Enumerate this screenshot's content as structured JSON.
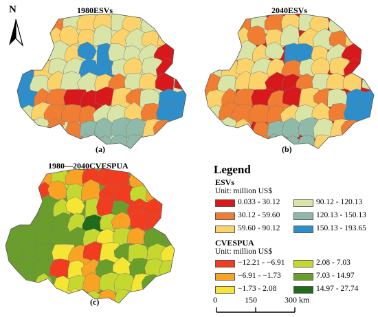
{
  "maps": {
    "a": {
      "title": "1980ESVs",
      "tag": "(a)"
    },
    "b": {
      "title": "2040ESVs",
      "tag": "(b)"
    },
    "c": {
      "title": "1980—2040CVESPUA",
      "tag": "(c)"
    }
  },
  "north_arrow": {
    "label": "N"
  },
  "legend": {
    "title": "Legend",
    "esvs": {
      "title": "ESVs",
      "unit": "Unit:  million US$",
      "classes": [
        {
          "label": "0.033 - 30.12",
          "color": "#d7191c"
        },
        {
          "label": "30.12 - 59.60",
          "color": "#f07d32"
        },
        {
          "label": "59.60 - 90.12",
          "color": "#fbd36a"
        },
        {
          "label": "90.12 - 120.13",
          "color": "#d8e5a6"
        },
        {
          "label": "120.13 - 150.13",
          "color": "#8fb9a8"
        },
        {
          "label": "150.13 - 193.65",
          "color": "#2c8ecb"
        }
      ]
    },
    "cvespua": {
      "title": "CVESPUA",
      "unit": "Unit: million US$",
      "classes": [
        {
          "label": "−12.21 - −6.91",
          "color": "#f23c1f"
        },
        {
          "label": "−6.91 - −1.73",
          "color": "#f8a323"
        },
        {
          "label": "−1.73 - 2.08",
          "color": "#f5e633"
        },
        {
          "label": "2.08 - 7.03",
          "color": "#c5d830"
        },
        {
          "label": "7.03 - 14.97",
          "color": "#6a9e2a"
        },
        {
          "label": "14.97 - 27.74",
          "color": "#1f6b1a"
        }
      ]
    }
  },
  "scale_bar": {
    "ticks": [
      "0",
      "150",
      "300 km"
    ]
  }
}
